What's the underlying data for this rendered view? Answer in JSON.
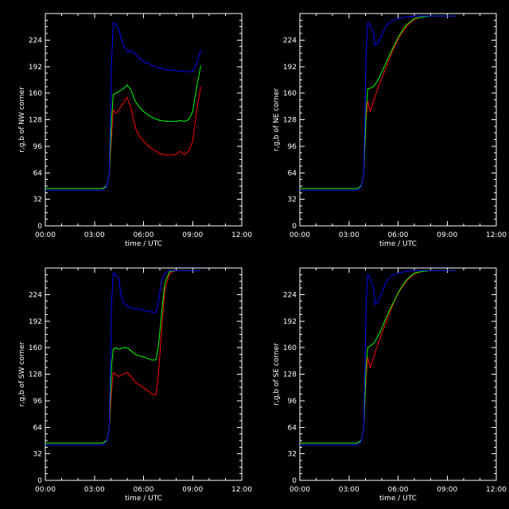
{
  "chart_data": [
    {
      "type": "line",
      "ylabel": "r,g,b of NW corner",
      "xlabel": "time / UTC",
      "xlim": [
        0,
        12
      ],
      "ylim": [
        0,
        256
      ],
      "xticks": [
        "00:00",
        "03:00",
        "06:00",
        "09:00",
        "12:00"
      ],
      "yticks": [
        "0",
        "32",
        "64",
        "96",
        "128",
        "160",
        "192",
        "224"
      ],
      "grid": false,
      "series": [
        {
          "color": "#ff0000",
          "x": [
            0,
            3.5,
            3.75,
            3.9,
            4.05,
            4.15,
            4.3,
            4.5,
            4.75,
            5.0,
            5.25,
            5.5,
            5.75,
            6.0,
            6.25,
            6.5,
            6.75,
            7.0,
            7.5,
            8.0,
            8.25,
            8.5,
            8.75,
            9.0,
            9.25,
            9.5
          ],
          "y": [
            45,
            45,
            48,
            62,
            110,
            140,
            136,
            140,
            148,
            155,
            140,
            118,
            108,
            102,
            97,
            93,
            90,
            87,
            85,
            86,
            90,
            86,
            90,
            102,
            140,
            168
          ]
        },
        {
          "color": "#00ff00",
          "x": [
            0,
            3.5,
            3.75,
            3.9,
            4.05,
            4.15,
            4.3,
            4.5,
            4.75,
            5.0,
            5.25,
            5.5,
            5.75,
            6.0,
            6.25,
            6.5,
            6.75,
            7.0,
            7.5,
            8.0,
            8.25,
            8.5,
            8.75,
            9.0,
            9.25,
            9.5
          ],
          "y": [
            45,
            45,
            48,
            62,
            130,
            158,
            160,
            162,
            165,
            170,
            163,
            150,
            143,
            138,
            134,
            131,
            129,
            127,
            126,
            126,
            127,
            126,
            128,
            138,
            168,
            193
          ]
        },
        {
          "color": "#0000ff",
          "x": [
            0,
            3.5,
            3.75,
            3.9,
            4.05,
            4.15,
            4.3,
            4.5,
            4.75,
            5.0,
            5.25,
            5.5,
            5.75,
            6.0,
            6.5,
            7.0,
            7.5,
            8.0,
            8.5,
            9.0,
            9.25,
            9.5
          ],
          "y": [
            43,
            43,
            47,
            62,
            200,
            245,
            243,
            236,
            218,
            210,
            211,
            207,
            202,
            198,
            194,
            190,
            188,
            187,
            186,
            186,
            196,
            212
          ]
        }
      ]
    },
    {
      "type": "line",
      "ylabel": "r,g,b of NE corner",
      "xlabel": "time / UTC",
      "xlim": [
        0,
        12
      ],
      "ylim": [
        0,
        256
      ],
      "xticks": [
        "00:00",
        "03:00",
        "06:00",
        "09:00",
        "12:00"
      ],
      "yticks": [
        "0",
        "32",
        "64",
        "96",
        "128",
        "160",
        "192",
        "224"
      ],
      "grid": false,
      "series": [
        {
          "color": "#ff0000",
          "x": [
            0,
            3.5,
            3.75,
            3.9,
            4.05,
            4.15,
            4.3,
            4.5,
            4.75,
            5.0,
            5.25,
            5.5,
            5.75,
            6.0,
            6.25,
            6.5,
            6.75,
            7.0,
            7.5,
            8.0,
            8.5,
            9.0,
            9.5
          ],
          "y": [
            45,
            45,
            48,
            62,
            130,
            150,
            138,
            150,
            165,
            178,
            190,
            203,
            215,
            225,
            233,
            240,
            245,
            249,
            252,
            253,
            253,
            253,
            253
          ]
        },
        {
          "color": "#00ff00",
          "x": [
            0,
            3.5,
            3.75,
            3.9,
            4.05,
            4.15,
            4.3,
            4.5,
            4.75,
            5.0,
            5.25,
            5.5,
            5.75,
            6.0,
            6.25,
            6.5,
            6.75,
            7.0,
            7.5,
            8.0,
            8.5,
            9.0,
            9.5
          ],
          "y": [
            45,
            45,
            48,
            62,
            140,
            165,
            166,
            168,
            175,
            185,
            196,
            207,
            217,
            227,
            235,
            242,
            246,
            250,
            252,
            253,
            253,
            253,
            253
          ]
        },
        {
          "color": "#0000ff",
          "x": [
            0,
            3.5,
            3.75,
            3.9,
            4.05,
            4.15,
            4.3,
            4.5,
            4.6,
            4.75,
            5.0,
            5.25,
            5.5,
            5.75,
            6.0,
            6.5,
            7.0,
            7.5,
            8.0,
            8.5,
            9.0,
            9.5
          ],
          "y": [
            43,
            43,
            47,
            62,
            210,
            245,
            242,
            232,
            218,
            220,
            230,
            240,
            246,
            248,
            250,
            252,
            253,
            253,
            253,
            253,
            253,
            253
          ]
        }
      ]
    },
    {
      "type": "line",
      "ylabel": "r,g,b of SW corner",
      "xlabel": "time / UTC",
      "xlim": [
        0,
        12
      ],
      "ylim": [
        0,
        256
      ],
      "xticks": [
        "00:00",
        "03:00",
        "06:00",
        "09:00",
        "12:00"
      ],
      "yticks": [
        "0",
        "32",
        "64",
        "96",
        "128",
        "160",
        "192",
        "224"
      ],
      "grid": false,
      "series": [
        {
          "color": "#ff0000",
          "x": [
            0,
            3.5,
            3.75,
            3.9,
            4.05,
            4.15,
            4.3,
            4.5,
            4.75,
            5.0,
            5.25,
            5.5,
            5.75,
            6.0,
            6.25,
            6.5,
            6.75,
            6.9,
            7.1,
            7.3,
            7.6,
            8.0,
            8.5,
            9.0,
            9.5
          ],
          "y": [
            45,
            45,
            48,
            62,
            110,
            130,
            128,
            125,
            128,
            130,
            125,
            118,
            115,
            112,
            108,
            104,
            103,
            125,
            180,
            230,
            250,
            253,
            253,
            253,
            253
          ]
        },
        {
          "color": "#00ff00",
          "x": [
            0,
            3.5,
            3.75,
            3.9,
            4.05,
            4.15,
            4.3,
            4.5,
            4.75,
            5.0,
            5.25,
            5.5,
            5.75,
            6.0,
            6.25,
            6.5,
            6.75,
            6.9,
            7.1,
            7.3,
            7.6,
            8.0,
            8.5,
            9.0,
            9.5
          ],
          "y": [
            45,
            45,
            48,
            62,
            140,
            158,
            160,
            158,
            160,
            160,
            156,
            152,
            150,
            149,
            147,
            145,
            145,
            160,
            200,
            238,
            252,
            253,
            253,
            253,
            253
          ]
        },
        {
          "color": "#0000ff",
          "x": [
            0,
            3.5,
            3.75,
            3.9,
            4.05,
            4.15,
            4.3,
            4.5,
            4.6,
            4.75,
            5.0,
            5.25,
            5.5,
            5.75,
            6.0,
            6.25,
            6.5,
            6.75,
            6.9,
            7.1,
            7.3,
            7.6,
            8.0,
            8.5,
            9.0,
            9.5
          ],
          "y": [
            43,
            43,
            47,
            62,
            215,
            250,
            248,
            243,
            225,
            215,
            210,
            208,
            207,
            206,
            205,
            204,
            203,
            202,
            215,
            240,
            250,
            253,
            253,
            253,
            253,
            253
          ]
        }
      ]
    },
    {
      "type": "line",
      "ylabel": "r,g,b of SE corner",
      "xlabel": "time / UTC",
      "xlim": [
        0,
        12
      ],
      "ylim": [
        0,
        256
      ],
      "xticks": [
        "00:00",
        "03:00",
        "06:00",
        "09:00",
        "12:00"
      ],
      "yticks": [
        "0",
        "32",
        "64",
        "96",
        "128",
        "160",
        "192",
        "224"
      ],
      "grid": false,
      "series": [
        {
          "color": "#ff0000",
          "x": [
            0,
            3.5,
            3.75,
            3.9,
            4.05,
            4.15,
            4.3,
            4.5,
            4.75,
            5.0,
            5.25,
            5.5,
            5.75,
            6.0,
            6.25,
            6.5,
            6.75,
            7.0,
            7.5,
            8.0,
            8.5,
            9.0,
            9.5
          ],
          "y": [
            45,
            45,
            48,
            62,
            125,
            148,
            136,
            148,
            163,
            177,
            190,
            203,
            215,
            225,
            233,
            240,
            245,
            249,
            252,
            253,
            253,
            253,
            253
          ]
        },
        {
          "color": "#00ff00",
          "x": [
            0,
            3.5,
            3.75,
            3.9,
            4.05,
            4.15,
            4.3,
            4.5,
            4.75,
            5.0,
            5.25,
            5.5,
            5.75,
            6.0,
            6.25,
            6.5,
            6.75,
            7.0,
            7.5,
            8.0,
            8.5,
            9.0,
            9.5
          ],
          "y": [
            45,
            45,
            48,
            62,
            138,
            160,
            162,
            165,
            173,
            183,
            195,
            206,
            216,
            226,
            234,
            241,
            246,
            250,
            252,
            253,
            253,
            253,
            253
          ]
        },
        {
          "color": "#0000ff",
          "x": [
            0,
            3.5,
            3.75,
            3.9,
            4.05,
            4.15,
            4.3,
            4.5,
            4.6,
            4.75,
            5.0,
            5.25,
            5.5,
            5.75,
            6.0,
            6.5,
            7.0,
            7.5,
            8.0,
            8.5,
            9.0,
            9.5
          ],
          "y": [
            43,
            43,
            47,
            62,
            215,
            248,
            244,
            232,
            212,
            215,
            226,
            238,
            245,
            248,
            250,
            252,
            253,
            253,
            253,
            253,
            253,
            253
          ]
        }
      ]
    }
  ]
}
